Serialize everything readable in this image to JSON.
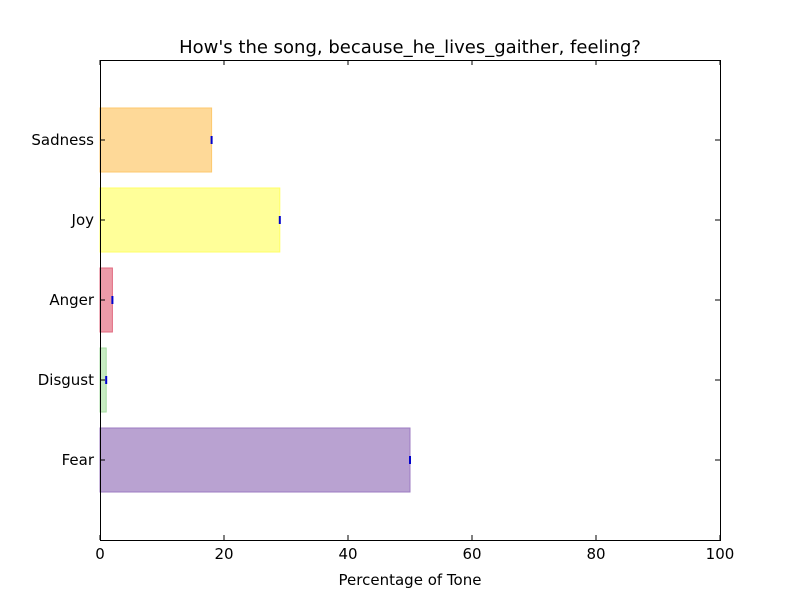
{
  "chart_data": {
    "type": "bar",
    "orientation": "horizontal",
    "title": "How's the song, because_he_lives_gaither, feeling?",
    "xlabel": "Percentage of Tone",
    "ylabel": "",
    "xlim": [
      0,
      100
    ],
    "xticks": [
      0,
      20,
      40,
      60,
      80,
      100
    ],
    "grid": false,
    "categories": [
      "Fear",
      "Disgust",
      "Anger",
      "Joy",
      "Sadness"
    ],
    "values": [
      50,
      1,
      2,
      29,
      18
    ],
    "colors": [
      "#b9a2d1",
      "#c7ebc2",
      "#ec9ba8",
      "#ffff99",
      "#fed998"
    ],
    "edge_colors": [
      "#9c7bc2",
      "#a6dba0",
      "#e26a7f",
      "#ffff66",
      "#fdc86e"
    ],
    "error_marker_color": "#0000cc"
  }
}
